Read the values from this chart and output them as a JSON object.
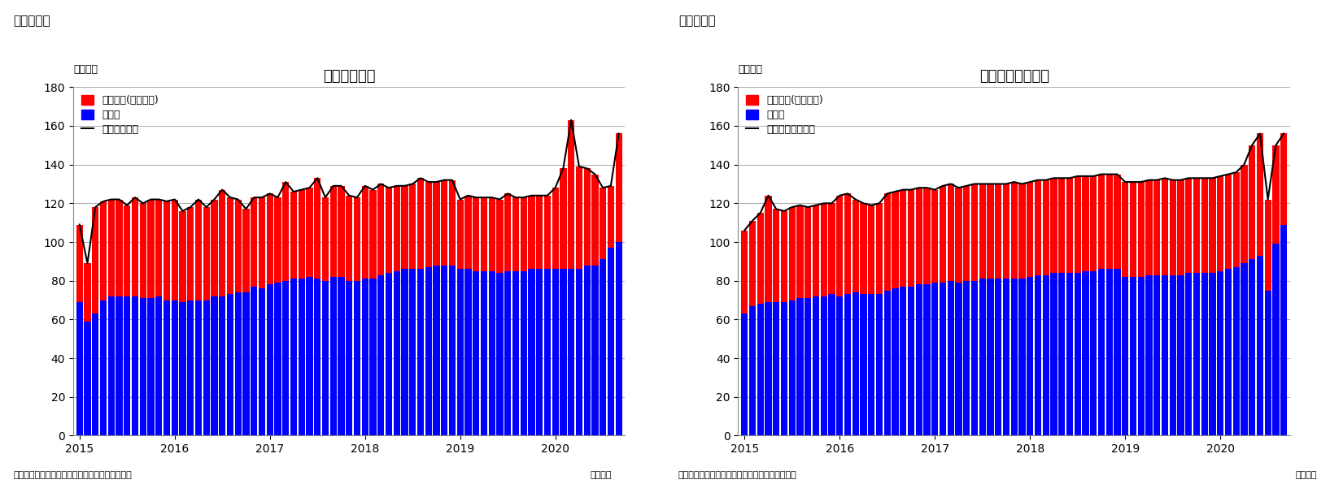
{
  "chart1_title": "住宅着工件数",
  "chart2_title": "住宅着工許可件数",
  "fig_label1": "（図表１）",
  "fig_label2": "（図表２）",
  "ylabel": "（万件）",
  "xlabel": "（月次）",
  "source1": "（資料）センサス局よりニッセイ基礎研究所作成",
  "source2": "（資料）センサス局よりニッセイ基礎研究所作成",
  "legend1": [
    "集合住宅(二戸以上)",
    "戸建て",
    "住宅着工件数"
  ],
  "legend2": [
    "集合住宅(二戸以上)",
    "戸建て",
    "住宅建築許可件数"
  ],
  "bar_color_red": "#FF0000",
  "bar_color_blue": "#0000FF",
  "line_color": "#000000",
  "ylim": [
    0,
    180
  ],
  "yticks": [
    0,
    20,
    40,
    60,
    80,
    100,
    120,
    140,
    160,
    180
  ],
  "xtick_years": [
    "2015",
    "2016",
    "2017",
    "2018",
    "2019",
    "2020"
  ],
  "background_color": "#FFFFFF",
  "chart1_blue": [
    69,
    59,
    63,
    70,
    72,
    72,
    72,
    72,
    71,
    71,
    72,
    70,
    70,
    69,
    70,
    70,
    70,
    72,
    72,
    73,
    74,
    74,
    77,
    76,
    78,
    79,
    80,
    81,
    81,
    82,
    81,
    80,
    82,
    82,
    80,
    80,
    81,
    81,
    83,
    84,
    85,
    86,
    86,
    86,
    87,
    88,
    88,
    88,
    86,
    86,
    85,
    85,
    85,
    84,
    85,
    85,
    85,
    86,
    86,
    86,
    86,
    86,
    86,
    86,
    88,
    88,
    91,
    97,
    100
  ],
  "chart1_red": [
    40,
    30,
    55,
    51,
    50,
    50,
    47,
    51,
    49,
    51,
    50,
    51,
    52,
    47,
    48,
    52,
    48,
    50,
    55,
    50,
    48,
    43,
    46,
    47,
    47,
    44,
    51,
    45,
    46,
    46,
    52,
    43,
    47,
    47,
    44,
    43,
    48,
    46,
    47,
    44,
    44,
    43,
    44,
    47,
    44,
    43,
    44,
    44,
    36,
    38,
    38,
    38,
    38,
    38,
    40,
    38,
    38,
    38,
    38,
    38,
    42,
    52,
    77,
    53,
    50,
    47,
    37,
    32,
    56
  ],
  "chart2_blue": [
    63,
    67,
    68,
    69,
    69,
    69,
    70,
    71,
    71,
    72,
    72,
    73,
    72,
    73,
    74,
    73,
    73,
    73,
    75,
    76,
    77,
    77,
    78,
    78,
    79,
    79,
    80,
    79,
    80,
    80,
    81,
    81,
    81,
    81,
    81,
    81,
    82,
    83,
    83,
    84,
    84,
    84,
    84,
    85,
    85,
    86,
    86,
    86,
    82,
    82,
    82,
    83,
    83,
    83,
    83,
    83,
    84,
    84,
    84,
    84,
    85,
    86,
    87,
    89,
    91,
    93,
    75,
    99,
    109
  ],
  "chart2_red": [
    43,
    44,
    47,
    55,
    48,
    47,
    48,
    48,
    47,
    47,
    48,
    47,
    52,
    52,
    48,
    47,
    46,
    47,
    50,
    50,
    50,
    50,
    50,
    50,
    48,
    50,
    50,
    49,
    49,
    50,
    49,
    49,
    49,
    49,
    50,
    49,
    49,
    49,
    49,
    49,
    49,
    49,
    50,
    49,
    49,
    49,
    49,
    49,
    49,
    49,
    49,
    49,
    49,
    50,
    49,
    49,
    49,
    49,
    49,
    49,
    49,
    49,
    49,
    51,
    59,
    63,
    47,
    51,
    47
  ]
}
